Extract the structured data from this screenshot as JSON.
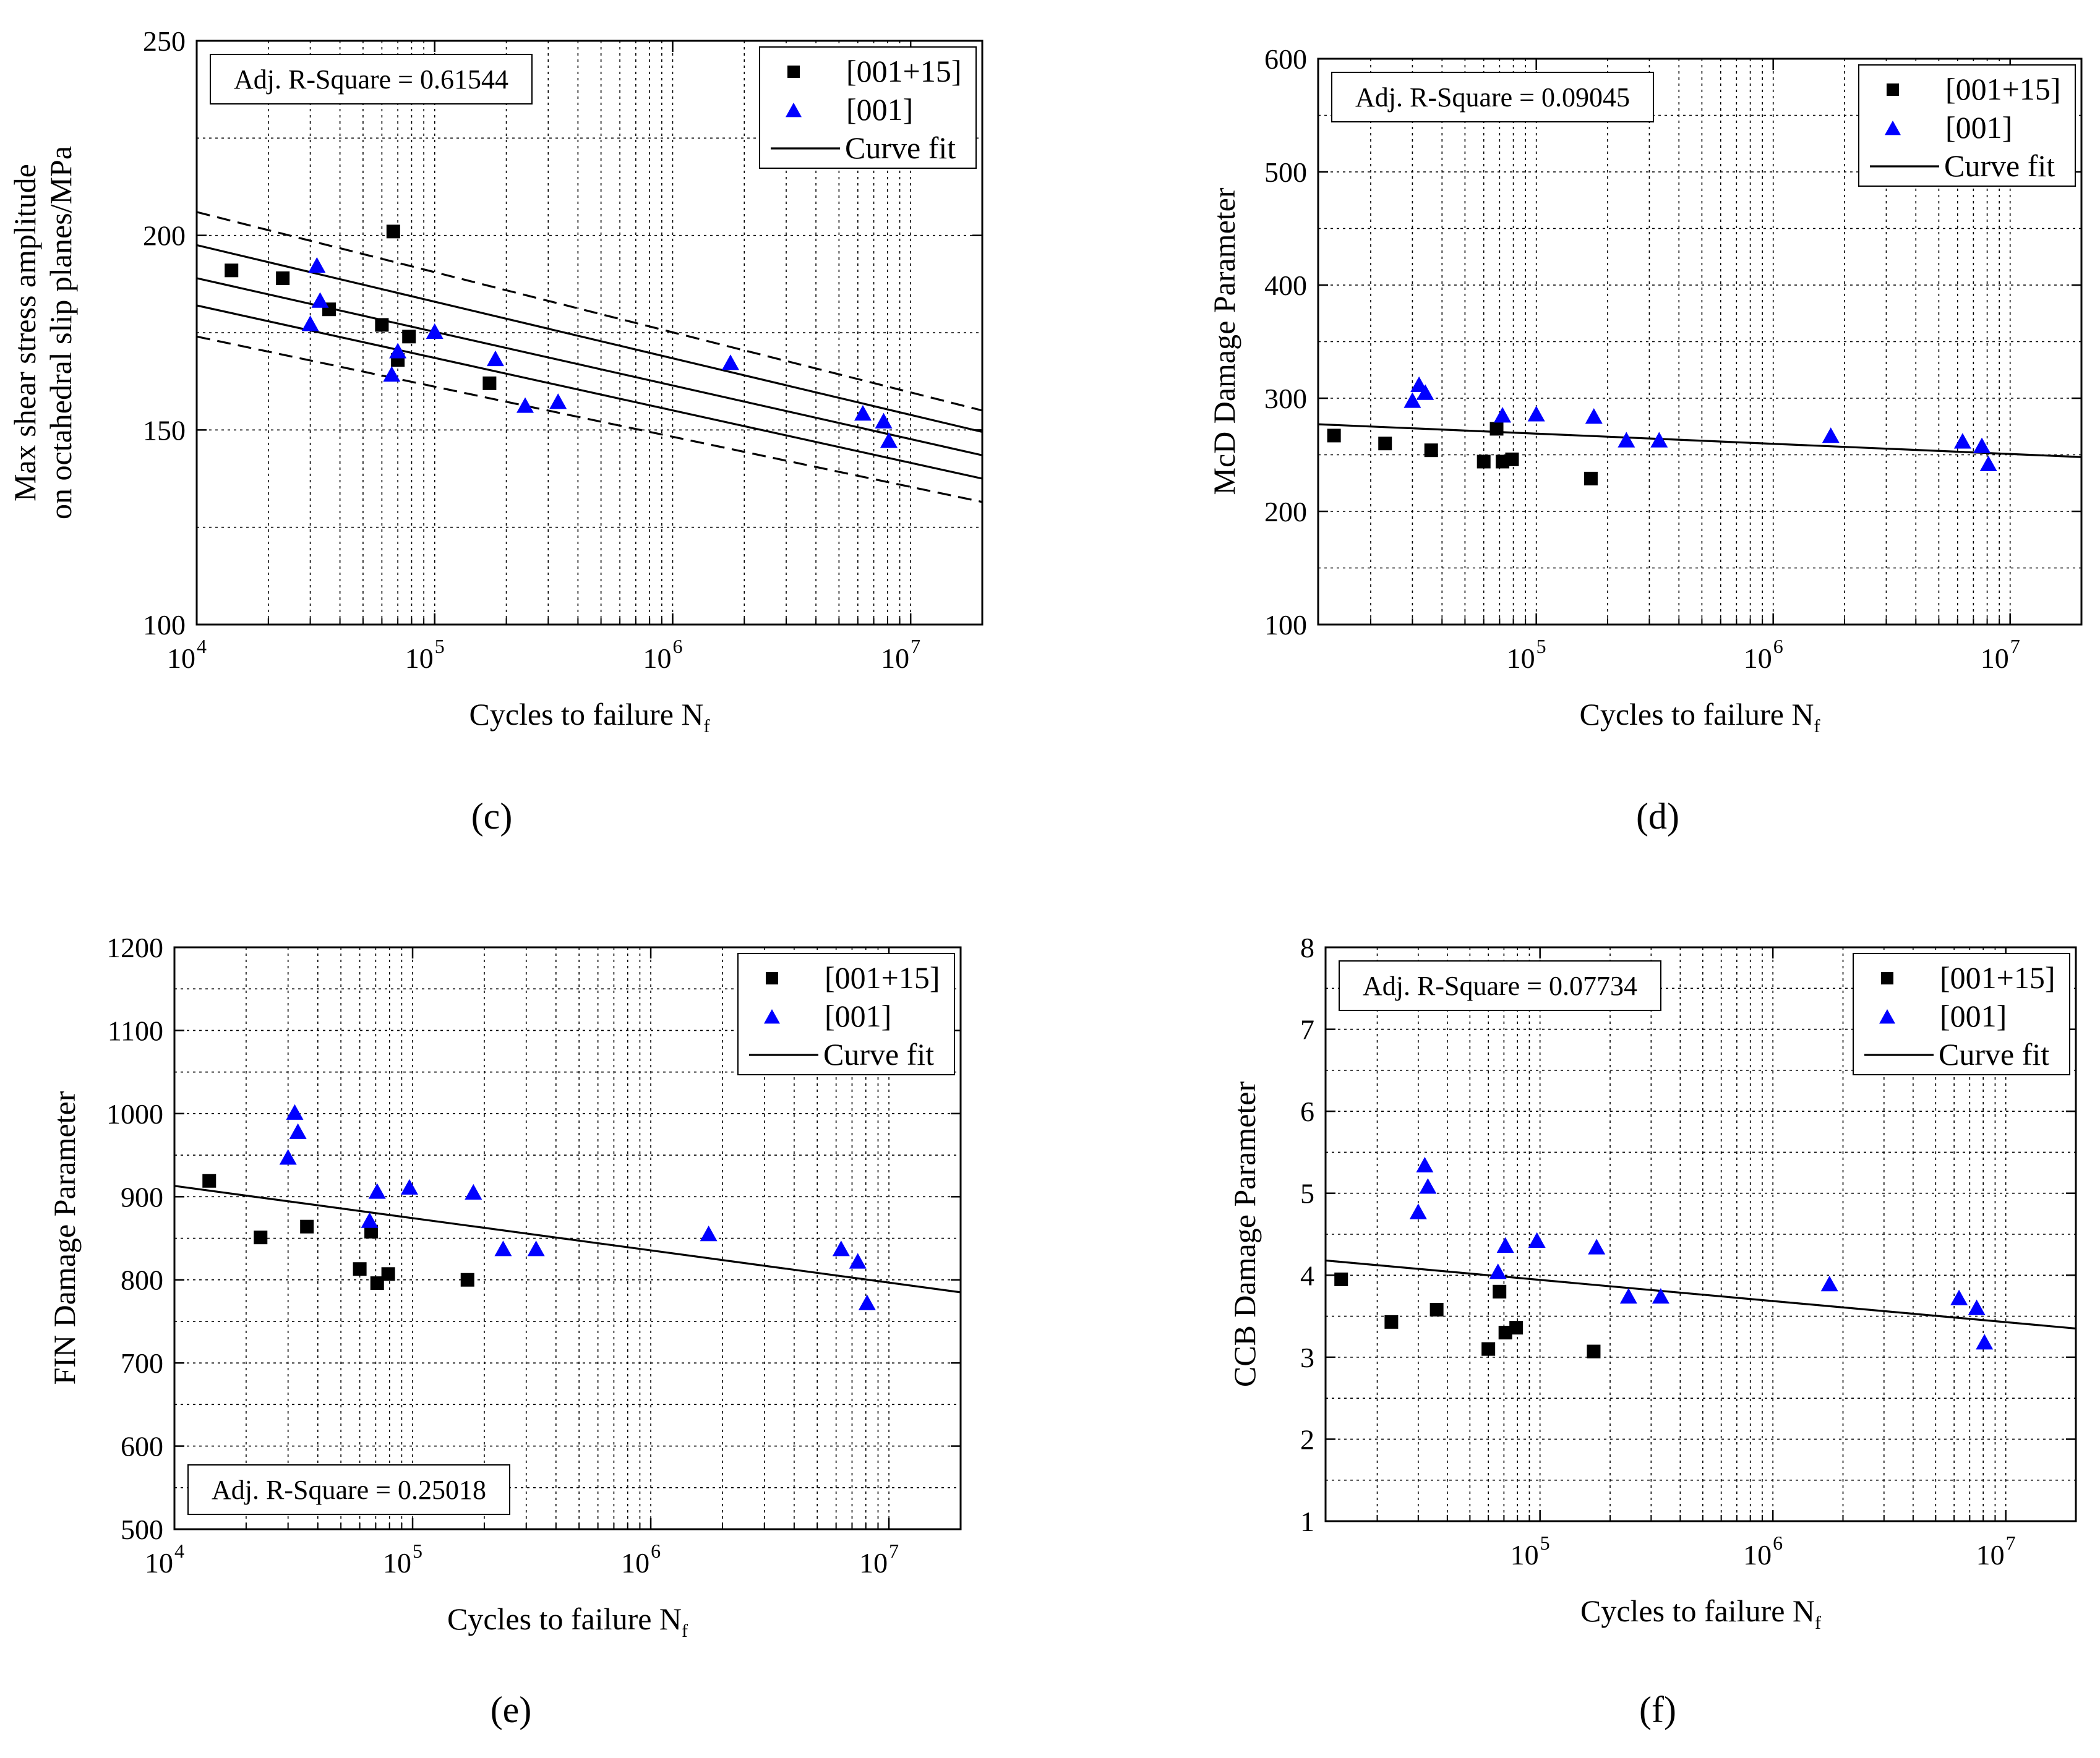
{
  "figure": {
    "panels": [
      "c",
      "d",
      "e",
      "f"
    ]
  },
  "chart_data": [
    {
      "panel_label": "(c)",
      "type": "scatter",
      "xlabel": "Cycles to failure N",
      "xlabel_subscript": "f",
      "ylabel_lines": [
        "Max shear stress amplitude",
        "on octahedral slip planes/MPa"
      ],
      "xscale": "log",
      "xlim": [
        10000,
        20000000
      ],
      "ylim": [
        100,
        250
      ],
      "xticks": [
        10000,
        100000,
        1000000,
        10000000
      ],
      "xtick_labels": [
        {
          "base": "10",
          "exp": "4"
        },
        {
          "base": "10",
          "exp": "5"
        },
        {
          "base": "10",
          "exp": "6"
        },
        {
          "base": "10",
          "exp": "7"
        }
      ],
      "yticks": [
        100,
        150,
        200,
        250
      ],
      "ytick_labels": [
        "100",
        "150",
        "200",
        "250"
      ],
      "grid": true,
      "r_square_text": "Adj. R-Square = 0.61544",
      "r_square_position": "top-left",
      "legend": {
        "position": "top-right",
        "entries": [
          {
            "label": "[001+15]",
            "marker": "square"
          },
          {
            "label": "[001]",
            "marker": "triangle"
          },
          {
            "label": "Curve fit",
            "marker": "line"
          }
        ]
      },
      "colors": {
        "square": "#000000",
        "triangle": "#0000ff"
      },
      "series": [
        {
          "legend_ref": "[001+15]",
          "marker": "square",
          "color": "#000000",
          "points": [
            [
              14000,
              191
            ],
            [
              23000,
              189
            ],
            [
              36000,
              181
            ],
            [
              60000,
              177
            ],
            [
              67000,
              201
            ],
            [
              70000,
              168
            ],
            [
              78000,
              174
            ],
            [
              170000,
              162
            ]
          ]
        },
        {
          "legend_ref": "[001]",
          "marker": "triangle",
          "color": "#0000ff",
          "points": [
            [
              30000,
              177
            ],
            [
              32000,
              192
            ],
            [
              33000,
              183
            ],
            [
              66000,
              164
            ],
            [
              70000,
              170
            ],
            [
              100000,
              175
            ],
            [
              180000,
              168
            ],
            [
              240000,
              156
            ],
            [
              330000,
              157
            ],
            [
              1750000,
              167
            ],
            [
              6300000,
              154
            ],
            [
              7700000,
              152
            ],
            [
              8100000,
              147
            ]
          ]
        }
      ],
      "fit_lines": [
        {
          "style": "solid",
          "from": [
            10000,
            189
          ],
          "to": [
            20000000,
            143.5
          ]
        },
        {
          "style": "solid",
          "from": [
            10000,
            197.5
          ],
          "to": [
            20000000,
            149.5
          ]
        },
        {
          "style": "solid",
          "from": [
            10000,
            182
          ],
          "to": [
            20000000,
            137.5
          ]
        },
        {
          "style": "dashed",
          "from": [
            10000,
            206
          ],
          "to": [
            20000000,
            155
          ]
        },
        {
          "style": "dashed",
          "from": [
            10000,
            174
          ],
          "to": [
            20000000,
            131.5
          ]
        }
      ]
    },
    {
      "panel_label": "(d)",
      "type": "scatter",
      "xlabel": "Cycles to failure N",
      "xlabel_subscript": "f",
      "ylabel_lines": [
        "McD Damage Parameter"
      ],
      "xscale": "log",
      "xlim": [
        12000,
        20000000
      ],
      "ylim": [
        100,
        600
      ],
      "xticks": [
        100000,
        1000000,
        10000000
      ],
      "xtick_labels": [
        {
          "base": "10",
          "exp": "5"
        },
        {
          "base": "10",
          "exp": "6"
        },
        {
          "base": "10",
          "exp": "7"
        }
      ],
      "yticks": [
        100,
        200,
        300,
        400,
        500,
        600
      ],
      "ytick_labels": [
        "100",
        "200",
        "300",
        "400",
        "500",
        "600"
      ],
      "grid": true,
      "r_square_text": "Adj. R-Square = 0.09045",
      "r_square_position": "top-left",
      "legend": {
        "position": "top-right",
        "entries": [
          {
            "label": "[001+15]",
            "marker": "square"
          },
          {
            "label": "[001]",
            "marker": "triangle"
          },
          {
            "label": "Curve fit",
            "marker": "line"
          }
        ]
      },
      "colors": {
        "square": "#000000",
        "triangle": "#0000ff"
      },
      "series": [
        {
          "legend_ref": "[001+15]",
          "marker": "square",
          "color": "#000000",
          "points": [
            [
              14000,
              267
            ],
            [
              23000,
              260
            ],
            [
              36000,
              254
            ],
            [
              60000,
              244
            ],
            [
              68000,
              273
            ],
            [
              72000,
              244
            ],
            [
              79000,
              246
            ],
            [
              170000,
              229
            ]
          ]
        },
        {
          "legend_ref": "[001]",
          "marker": "triangle",
          "color": "#0000ff",
          "points": [
            [
              30000,
              297
            ],
            [
              32000,
              311
            ],
            [
              34000,
              304
            ],
            [
              72000,
              284
            ],
            [
              100000,
              285
            ],
            [
              175000,
              283
            ],
            [
              240000,
              262
            ],
            [
              330000,
              262
            ],
            [
              1750000,
              266
            ],
            [
              6300000,
              261
            ],
            [
              7600000,
              257
            ],
            [
              8100000,
              241
            ]
          ]
        }
      ],
      "fit_lines": [
        {
          "style": "solid",
          "from": [
            12000,
            277
          ],
          "to": [
            20000000,
            248
          ]
        }
      ]
    },
    {
      "panel_label": "(e)",
      "type": "scatter",
      "xlabel": "Cycles to failure N",
      "xlabel_subscript": "f",
      "ylabel_lines": [
        "FIN Damage Parameter"
      ],
      "xscale": "log",
      "xlim": [
        10000,
        20000000
      ],
      "ylim": [
        500,
        1200
      ],
      "xticks": [
        10000,
        100000,
        1000000,
        10000000
      ],
      "xtick_labels": [
        {
          "base": "10",
          "exp": "4"
        },
        {
          "base": "10",
          "exp": "5"
        },
        {
          "base": "10",
          "exp": "6"
        },
        {
          "base": "10",
          "exp": "7"
        }
      ],
      "yticks": [
        500,
        600,
        700,
        800,
        900,
        1000,
        1100,
        1200
      ],
      "ytick_labels": [
        "500",
        "600",
        "700",
        "800",
        "900",
        "1000",
        "1100",
        "1200"
      ],
      "grid": true,
      "r_square_text": "Adj. R-Square = 0.25018",
      "r_square_position": "bottom-left",
      "legend": {
        "position": "top-right",
        "entries": [
          {
            "label": "[001+15]",
            "marker": "square"
          },
          {
            "label": "[001]",
            "marker": "triangle"
          },
          {
            "label": "Curve fit",
            "marker": "line"
          }
        ]
      },
      "colors": {
        "square": "#000000",
        "triangle": "#0000ff"
      },
      "series": [
        {
          "legend_ref": "[001+15]",
          "marker": "square",
          "color": "#000000",
          "points": [
            [
              14000,
              919
            ],
            [
              23000,
              851
            ],
            [
              36000,
              864
            ],
            [
              60000,
              813
            ],
            [
              67000,
              858
            ],
            [
              71000,
              796
            ],
            [
              79000,
              807
            ],
            [
              170000,
              800
            ]
          ]
        },
        {
          "legend_ref": "[001]",
          "marker": "triangle",
          "color": "#0000ff",
          "points": [
            [
              30000,
              946
            ],
            [
              32000,
              1000
            ],
            [
              33000,
              977
            ],
            [
              66000,
              870
            ],
            [
              71000,
              905
            ],
            [
              97000,
              910
            ],
            [
              180000,
              904
            ],
            [
              240000,
              836
            ],
            [
              330000,
              836
            ],
            [
              1750000,
              854
            ],
            [
              6300000,
              836
            ],
            [
              7400000,
              821
            ],
            [
              8100000,
              771
            ]
          ]
        }
      ],
      "fit_lines": [
        {
          "style": "solid",
          "from": [
            10000,
            913
          ],
          "to": [
            20000000,
            785
          ]
        }
      ]
    },
    {
      "panel_label": "(f)",
      "type": "scatter",
      "xlabel": "Cycles to failure N",
      "xlabel_subscript": "f",
      "ylabel_lines": [
        "CCB Damage Parameter"
      ],
      "xscale": "log",
      "xlim": [
        12000,
        20000000
      ],
      "ylim": [
        1,
        8
      ],
      "xticks": [
        100000,
        1000000,
        10000000
      ],
      "xtick_labels": [
        {
          "base": "10",
          "exp": "5"
        },
        {
          "base": "10",
          "exp": "6"
        },
        {
          "base": "10",
          "exp": "7"
        }
      ],
      "yticks": [
        1,
        2,
        3,
        4,
        5,
        6,
        7,
        8
      ],
      "ytick_labels": [
        "1",
        "2",
        "3",
        "4",
        "5",
        "6",
        "7",
        "8"
      ],
      "grid": true,
      "r_square_text": "Adj. R-Square = 0.07734",
      "r_square_position": "top-left",
      "legend": {
        "position": "top-right",
        "entries": [
          {
            "label": "[001+15]",
            "marker": "square"
          },
          {
            "label": "[001]",
            "marker": "triangle"
          },
          {
            "label": "Curve fit",
            "marker": "line"
          }
        ]
      },
      "colors": {
        "square": "#000000",
        "triangle": "#0000ff"
      },
      "series": [
        {
          "legend_ref": "[001+15]",
          "marker": "square",
          "color": "#000000",
          "points": [
            [
              14000,
              3.95
            ],
            [
              23000,
              3.43
            ],
            [
              36000,
              3.58
            ],
            [
              60000,
              3.1
            ],
            [
              67000,
              3.8
            ],
            [
              71000,
              3.3
            ],
            [
              79000,
              3.36
            ],
            [
              170000,
              3.07
            ]
          ]
        },
        {
          "legend_ref": "[001]",
          "marker": "triangle",
          "color": "#0000ff",
          "points": [
            [
              30000,
              4.76
            ],
            [
              32000,
              5.33
            ],
            [
              33000,
              5.07
            ],
            [
              66000,
              4.03
            ],
            [
              71000,
              4.35
            ],
            [
              97000,
              4.41
            ],
            [
              175000,
              4.33
            ],
            [
              240000,
              3.73
            ],
            [
              330000,
              3.73
            ],
            [
              1750000,
              3.88
            ],
            [
              6300000,
              3.71
            ],
            [
              7500000,
              3.59
            ],
            [
              8100000,
              3.17
            ]
          ]
        }
      ],
      "fit_lines": [
        {
          "style": "solid",
          "from": [
            12000,
            4.18
          ],
          "to": [
            20000000,
            3.35
          ]
        }
      ]
    }
  ]
}
